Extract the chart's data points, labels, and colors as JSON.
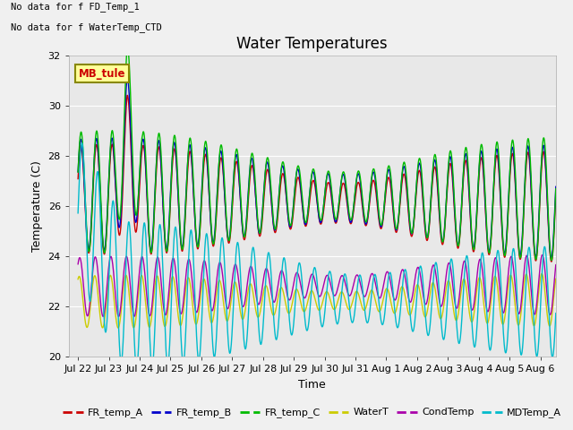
{
  "title": "Water Temperatures",
  "xlabel": "Time",
  "ylabel": "Temperature (C)",
  "ylim": [
    20,
    32
  ],
  "annotation1": "No data for f FD_Temp_1",
  "annotation2": "No data for f WaterTemp_CTD",
  "mb_tule_label": "MB_tule",
  "xtick_labels": [
    "Jul 22",
    "Jul 23",
    "Jul 24",
    "Jul 25",
    "Jul 26",
    "Jul 27",
    "Jul 28",
    "Jul 29",
    "Jul 30",
    "Jul 31",
    "Aug 1",
    "Aug 2",
    "Aug 3",
    "Aug 4",
    "Aug 5",
    "Aug 6"
  ],
  "ytick_values": [
    20,
    22,
    24,
    26,
    28,
    30,
    32
  ],
  "series": {
    "FR_temp_A": {
      "color": "#cc0000",
      "lw": 1.0
    },
    "FR_temp_B": {
      "color": "#0000cc",
      "lw": 1.0
    },
    "FR_temp_C": {
      "color": "#00bb00",
      "lw": 1.0
    },
    "WaterT": {
      "color": "#cccc00",
      "lw": 1.0
    },
    "CondTemp": {
      "color": "#aa00aa",
      "lw": 1.0
    },
    "MDTemp_A": {
      "color": "#00bbcc",
      "lw": 1.0
    }
  },
  "bg_color": "#f0f0f0",
  "plot_bg_color": "#e8e8e8",
  "grid_color": "#ffffff",
  "title_fontsize": 12,
  "axis_label_fontsize": 9,
  "tick_fontsize": 8,
  "legend_fontsize": 8
}
